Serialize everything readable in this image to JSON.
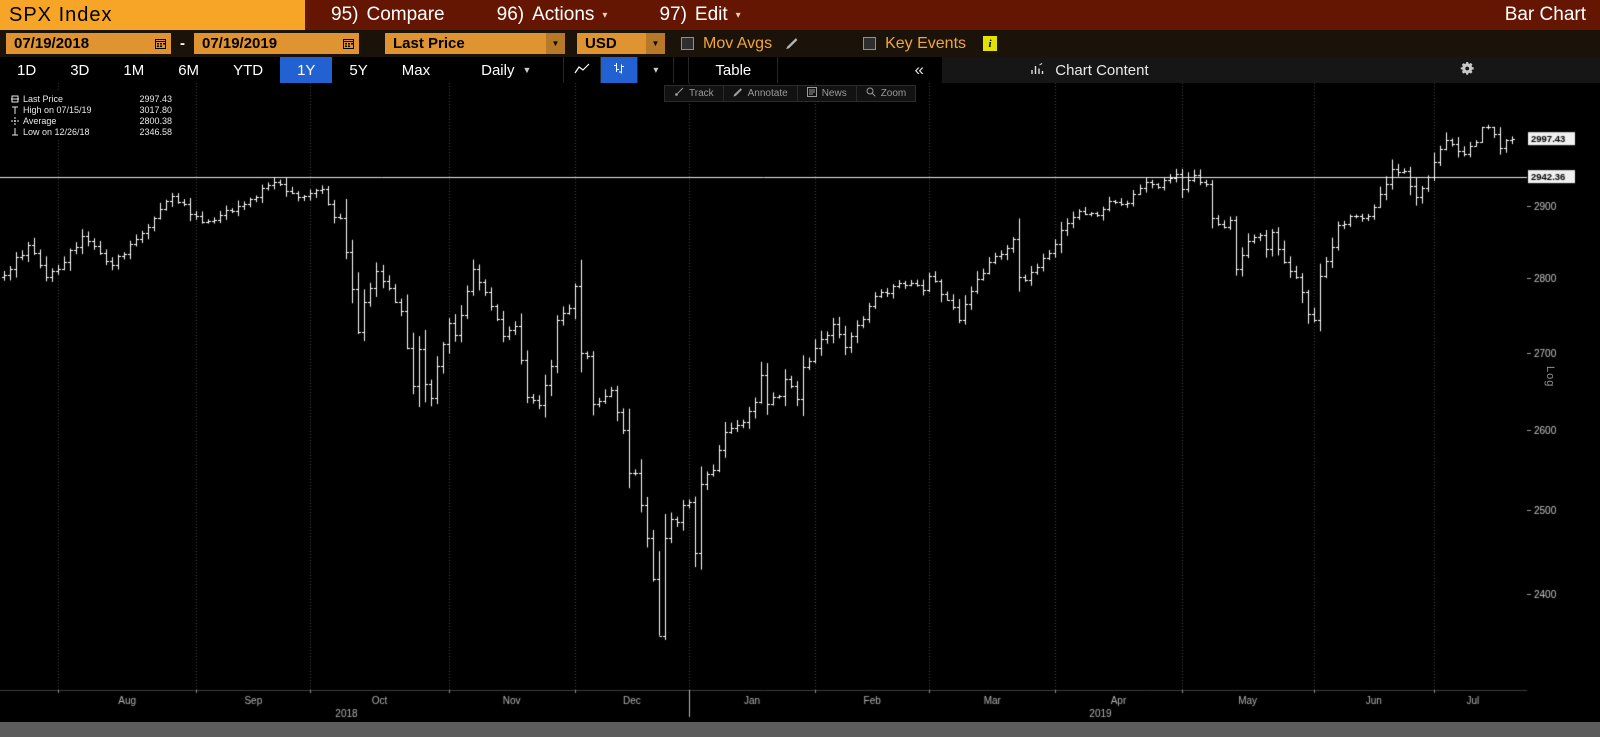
{
  "top_bar": {
    "ticker": "SPX Index",
    "menus": [
      {
        "number": "95)",
        "label": "Compare"
      },
      {
        "number": "96)",
        "label": "Actions"
      },
      {
        "number": "97)",
        "label": "Edit"
      }
    ],
    "right_title": "Bar Chart"
  },
  "settings_bar": {
    "date_from": "07/19/2018",
    "range_separator": "-",
    "date_to": "07/19/2019",
    "price_field": "Last Price",
    "currency": "USD",
    "mov_avgs": {
      "label": "Mov Avgs",
      "checked": false
    },
    "key_events": {
      "label": "Key Events",
      "checked": false
    },
    "info_badge": "i"
  },
  "period_bar": {
    "ranges": [
      {
        "label": "1D",
        "selected": false
      },
      {
        "label": "3D",
        "selected": false
      },
      {
        "label": "1M",
        "selected": false
      },
      {
        "label": "6M",
        "selected": false
      },
      {
        "label": "YTD",
        "selected": false
      },
      {
        "label": "1Y",
        "selected": true
      },
      {
        "label": "5Y",
        "selected": false
      },
      {
        "label": "Max",
        "selected": false
      }
    ],
    "frequency": "Daily",
    "table_label": "Table",
    "collapse_glyph": "«",
    "chart_content_label": "Chart Content"
  },
  "mini_toolbar": {
    "items": [
      {
        "label": "Track"
      },
      {
        "label": "Annotate"
      },
      {
        "label": "News"
      },
      {
        "label": "Zoom"
      }
    ]
  },
  "legend": {
    "items": [
      {
        "label": "Last Price",
        "value": "2997.43"
      },
      {
        "label": "High on 07/15/19",
        "value": "3017.80"
      },
      {
        "label": "Average",
        "value": "2800.38"
      },
      {
        "label": "Low on 12/26/18",
        "value": "2346.58"
      }
    ]
  },
  "chart_data": {
    "type": "ohlc_bar",
    "title": "SPX Index, Last Price, Daily, 07/19/2018 - 07/19/2019, Log scale",
    "x_range": {
      "start": "07/19/2018",
      "end": "07/19/2019",
      "trading_days": 252
    },
    "y_axis": {
      "scale": "log",
      "scale_label": "Log",
      "ticks": [
        2400,
        2500,
        2600,
        2700,
        2800,
        2900
      ],
      "plot_top_price": 3080,
      "plot_bottom_price": 2290
    },
    "last_price": 2997.43,
    "reference_line": 2942.36,
    "average": 2800.38,
    "high": {
      "date": "07/15/19",
      "value": 3017.8,
      "day_index": 247
    },
    "low": {
      "date": "12/26/18",
      "value": 2346.58,
      "day_index": 110
    },
    "month_ticks": [
      {
        "label": "Aug",
        "day": 9
      },
      {
        "label": "Sep",
        "day": 32
      },
      {
        "label": "Oct",
        "day": 51
      },
      {
        "label": "Nov",
        "day": 74
      },
      {
        "label": "Dec",
        "day": 95
      },
      {
        "label": "Jan",
        "day": 114
      },
      {
        "label": "Feb",
        "day": 135
      },
      {
        "label": "Mar",
        "day": 154
      },
      {
        "label": "Apr",
        "day": 175
      },
      {
        "label": "May",
        "day": 196
      },
      {
        "label": "Jun",
        "day": 218
      },
      {
        "label": "Jul",
        "day": 238
      }
    ],
    "year_divider_day": 114,
    "year_labels": [
      {
        "label": "2018",
        "start_day": 0,
        "end_day": 114
      },
      {
        "label": "2019",
        "start_day": 114,
        "end_day": 251
      }
    ],
    "close_anchors": [
      [
        0,
        2805
      ],
      [
        4,
        2846
      ],
      [
        7,
        2802
      ],
      [
        9,
        2813
      ],
      [
        13,
        2858
      ],
      [
        18,
        2818
      ],
      [
        23,
        2862
      ],
      [
        28,
        2914
      ],
      [
        33,
        2878
      ],
      [
        36,
        2888
      ],
      [
        40,
        2904
      ],
      [
        44,
        2930
      ],
      [
        45,
        2935
      ],
      [
        48,
        2919
      ],
      [
        50,
        2914
      ],
      [
        52,
        2923
      ],
      [
        53,
        2925
      ],
      [
        55,
        2885
      ],
      [
        56,
        2884
      ],
      [
        58,
        2785
      ],
      [
        59,
        2728
      ],
      [
        60,
        2767
      ],
      [
        62,
        2810
      ],
      [
        65,
        2768
      ],
      [
        66,
        2756
      ],
      [
        68,
        2656
      ],
      [
        69,
        2705
      ],
      [
        70,
        2659
      ],
      [
        71,
        2641
      ],
      [
        72,
        2683
      ],
      [
        73,
        2712
      ],
      [
        74,
        2740
      ],
      [
        75,
        2723
      ],
      [
        78,
        2813
      ],
      [
        80,
        2781
      ],
      [
        83,
        2722
      ],
      [
        85,
        2736
      ],
      [
        86,
        2691
      ],
      [
        87,
        2642
      ],
      [
        89,
        2632
      ],
      [
        91,
        2682
      ],
      [
        92,
        2744
      ],
      [
        94,
        2760
      ],
      [
        95,
        2790
      ],
      [
        96,
        2700
      ],
      [
        97,
        2696
      ],
      [
        98,
        2633
      ],
      [
        99,
        2637
      ],
      [
        101,
        2651
      ],
      [
        103,
        2600
      ],
      [
        104,
        2546
      ],
      [
        105,
        2546
      ],
      [
        106,
        2507
      ],
      [
        107,
        2467
      ],
      [
        108,
        2417
      ],
      [
        109,
        2351
      ],
      [
        110,
        2467
      ],
      [
        111,
        2489
      ],
      [
        112,
        2486
      ],
      [
        113,
        2507
      ],
      [
        114,
        2510
      ],
      [
        115,
        2448
      ],
      [
        116,
        2532
      ],
      [
        118,
        2550
      ],
      [
        120,
        2597
      ],
      [
        123,
        2610
      ],
      [
        125,
        2636
      ],
      [
        126,
        2671
      ],
      [
        127,
        2633
      ],
      [
        129,
        2643
      ],
      [
        130,
        2665
      ],
      [
        132,
        2640
      ],
      [
        133,
        2681
      ],
      [
        135,
        2706
      ],
      [
        138,
        2738
      ],
      [
        140,
        2708
      ],
      [
        143,
        2745
      ],
      [
        145,
        2776
      ],
      [
        147,
        2780
      ],
      [
        149,
        2793
      ],
      [
        151,
        2794
      ],
      [
        153,
        2784
      ],
      [
        154,
        2803
      ],
      [
        157,
        2771
      ],
      [
        159,
        2743
      ],
      [
        161,
        2783
      ],
      [
        164,
        2822
      ],
      [
        166,
        2833
      ],
      [
        168,
        2854
      ],
      [
        169,
        2801
      ],
      [
        170,
        2798
      ],
      [
        172,
        2815
      ],
      [
        174,
        2834
      ],
      [
        176,
        2867
      ],
      [
        179,
        2893
      ],
      [
        182,
        2888
      ],
      [
        184,
        2907
      ],
      [
        187,
        2905
      ],
      [
        190,
        2934
      ],
      [
        192,
        2927
      ],
      [
        194,
        2940
      ],
      [
        195,
        2946
      ],
      [
        196,
        2924
      ],
      [
        198,
        2945
      ],
      [
        200,
        2932
      ],
      [
        201,
        2884
      ],
      [
        203,
        2871
      ],
      [
        204,
        2881
      ],
      [
        205,
        2812
      ],
      [
        207,
        2851
      ],
      [
        209,
        2859
      ],
      [
        210,
        2840
      ],
      [
        211,
        2864
      ],
      [
        213,
        2822
      ],
      [
        215,
        2802
      ],
      [
        217,
        2752
      ],
      [
        218,
        2744
      ],
      [
        219,
        2803
      ],
      [
        221,
        2843
      ],
      [
        222,
        2873
      ],
      [
        224,
        2886
      ],
      [
        227,
        2887
      ],
      [
        229,
        2918
      ],
      [
        231,
        2954
      ],
      [
        233,
        2950
      ],
      [
        235,
        2913
      ],
      [
        237,
        2942
      ],
      [
        238,
        2964
      ],
      [
        240,
        2996
      ],
      [
        241,
        2990
      ],
      [
        243,
        2975
      ],
      [
        245,
        2993
      ],
      [
        246,
        3014
      ],
      [
        247,
        3014
      ],
      [
        248,
        3004
      ],
      [
        249,
        2984
      ],
      [
        250,
        2995
      ],
      [
        251,
        2997.43
      ]
    ]
  }
}
